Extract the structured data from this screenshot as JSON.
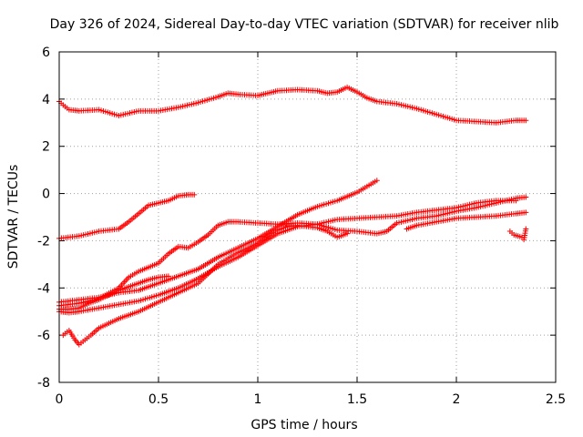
{
  "chart_data": {
    "type": "scatter",
    "title": "Day 326 of 2024, Sidereal Day-to-day VTEC variation (SDTVAR) for receiver nlib",
    "xlabel": "GPS time / hours",
    "ylabel": "SDTVAR / TECUs",
    "xlim": [
      0,
      2.5
    ],
    "ylim": [
      -8,
      6
    ],
    "xticks": [
      {
        "value": 0,
        "label": "0"
      },
      {
        "value": 0.5,
        "label": "0.5"
      },
      {
        "value": 1,
        "label": "1"
      },
      {
        "value": 1.5,
        "label": "1.5"
      },
      {
        "value": 2,
        "label": "2"
      },
      {
        "value": 2.5,
        "label": "2.5"
      }
    ],
    "yticks": [
      {
        "value": -8,
        "label": "-8"
      },
      {
        "value": -6,
        "label": "-6"
      },
      {
        "value": -4,
        "label": "-4"
      },
      {
        "value": -2,
        "label": "-2"
      },
      {
        "value": 0,
        "label": "0"
      },
      {
        "value": 2,
        "label": "2"
      },
      {
        "value": 4,
        "label": "4"
      },
      {
        "value": 6,
        "label": "6"
      }
    ],
    "grid": true,
    "marker": "+",
    "marker_color": "#ff0000",
    "series": [
      {
        "name": "top-arc",
        "points": [
          [
            0,
            3.9
          ],
          [
            0.02,
            3.75
          ],
          [
            0.05,
            3.55
          ],
          [
            0.1,
            3.5
          ],
          [
            0.2,
            3.55
          ],
          [
            0.3,
            3.3
          ],
          [
            0.4,
            3.5
          ],
          [
            0.5,
            3.5
          ],
          [
            0.6,
            3.65
          ],
          [
            0.7,
            3.85
          ],
          [
            0.8,
            4.1
          ],
          [
            0.85,
            4.25
          ],
          [
            0.9,
            4.2
          ],
          [
            1.0,
            4.15
          ],
          [
            1.05,
            4.25
          ],
          [
            1.1,
            4.35
          ],
          [
            1.2,
            4.4
          ],
          [
            1.3,
            4.35
          ],
          [
            1.35,
            4.25
          ],
          [
            1.4,
            4.3
          ],
          [
            1.45,
            4.5
          ],
          [
            1.5,
            4.3
          ],
          [
            1.55,
            4.05
          ],
          [
            1.6,
            3.9
          ],
          [
            1.7,
            3.8
          ],
          [
            1.8,
            3.6
          ],
          [
            1.9,
            3.35
          ],
          [
            2.0,
            3.1
          ],
          [
            2.1,
            3.05
          ],
          [
            2.2,
            3.0
          ],
          [
            2.3,
            3.1
          ],
          [
            2.35,
            3.1
          ]
        ]
      },
      {
        "name": "rising-early",
        "points": [
          [
            0,
            -1.9
          ],
          [
            0.1,
            -1.8
          ],
          [
            0.2,
            -1.6
          ],
          [
            0.3,
            -1.5
          ],
          [
            0.35,
            -1.2
          ],
          [
            0.4,
            -0.85
          ],
          [
            0.45,
            -0.5
          ],
          [
            0.5,
            -0.4
          ],
          [
            0.55,
            -0.3
          ],
          [
            0.6,
            -0.1
          ],
          [
            0.65,
            -0.05
          ],
          [
            0.68,
            -0.05
          ]
        ]
      },
      {
        "name": "steep-rise",
        "points": [
          [
            0,
            -4.6
          ],
          [
            0.1,
            -4.5
          ],
          [
            0.2,
            -4.4
          ],
          [
            0.3,
            -4.2
          ],
          [
            0.4,
            -4.1
          ],
          [
            0.5,
            -3.8
          ],
          [
            0.6,
            -3.5
          ],
          [
            0.7,
            -3.2
          ],
          [
            0.8,
            -2.7
          ],
          [
            0.9,
            -2.3
          ],
          [
            1.0,
            -1.9
          ],
          [
            1.1,
            -1.4
          ],
          [
            1.2,
            -0.9
          ],
          [
            1.3,
            -0.55
          ],
          [
            1.4,
            -0.3
          ],
          [
            1.5,
            0.05
          ],
          [
            1.55,
            0.3
          ],
          [
            1.6,
            0.55
          ]
        ]
      },
      {
        "name": "mid-rise",
        "points": [
          [
            0,
            -4.75
          ],
          [
            0.1,
            -4.65
          ],
          [
            0.2,
            -4.45
          ],
          [
            0.3,
            -4.0
          ],
          [
            0.35,
            -3.55
          ],
          [
            0.4,
            -3.3
          ],
          [
            0.5,
            -2.95
          ],
          [
            0.55,
            -2.55
          ],
          [
            0.6,
            -2.25
          ],
          [
            0.65,
            -2.3
          ],
          [
            0.7,
            -2.05
          ],
          [
            0.75,
            -1.75
          ],
          [
            0.8,
            -1.35
          ],
          [
            0.85,
            -1.2
          ],
          [
            0.9,
            -1.2
          ],
          [
            1.0,
            -1.25
          ],
          [
            1.1,
            -1.3
          ],
          [
            1.2,
            -1.25
          ],
          [
            1.3,
            -1.3
          ],
          [
            1.4,
            -1.55
          ],
          [
            1.5,
            -1.6
          ],
          [
            1.6,
            -1.7
          ],
          [
            1.65,
            -1.6
          ],
          [
            1.7,
            -1.25
          ],
          [
            1.8,
            -1.05
          ],
          [
            1.9,
            -0.95
          ],
          [
            2.0,
            -0.75
          ],
          [
            2.1,
            -0.6
          ],
          [
            2.2,
            -0.4
          ],
          [
            2.3,
            -0.2
          ],
          [
            2.35,
            -0.15
          ]
        ]
      },
      {
        "name": "short-lower",
        "points": [
          [
            0,
            -4.9
          ],
          [
            0.05,
            -4.9
          ],
          [
            0.1,
            -4.85
          ],
          [
            0.15,
            -4.65
          ],
          [
            0.2,
            -4.5
          ],
          [
            0.25,
            -4.3
          ],
          [
            0.3,
            -4.1
          ],
          [
            0.35,
            -3.95
          ],
          [
            0.4,
            -3.8
          ],
          [
            0.45,
            -3.65
          ],
          [
            0.5,
            -3.55
          ],
          [
            0.55,
            -3.5
          ]
        ]
      },
      {
        "name": "lower-rise",
        "points": [
          [
            0,
            -5.0
          ],
          [
            0.05,
            -5.05
          ],
          [
            0.1,
            -5.0
          ],
          [
            0.2,
            -4.85
          ],
          [
            0.3,
            -4.7
          ],
          [
            0.4,
            -4.55
          ],
          [
            0.5,
            -4.3
          ],
          [
            0.6,
            -4.0
          ],
          [
            0.7,
            -3.6
          ],
          [
            0.8,
            -3.1
          ],
          [
            0.9,
            -2.7
          ],
          [
            1.0,
            -2.2
          ],
          [
            1.1,
            -1.7
          ],
          [
            1.2,
            -1.4
          ],
          [
            1.3,
            -1.3
          ],
          [
            1.4,
            -1.1
          ],
          [
            1.5,
            -1.05
          ],
          [
            1.6,
            -1.0
          ],
          [
            1.7,
            -0.95
          ],
          [
            1.8,
            -0.8
          ],
          [
            1.9,
            -0.7
          ],
          [
            2.0,
            -0.6
          ],
          [
            2.1,
            -0.4
          ],
          [
            2.2,
            -0.3
          ],
          [
            2.3,
            -0.3
          ]
        ]
      },
      {
        "name": "bottom-rise",
        "points": [
          [
            0.02,
            -6.0
          ],
          [
            0.05,
            -5.8
          ],
          [
            0.08,
            -6.2
          ],
          [
            0.1,
            -6.4
          ],
          [
            0.13,
            -6.2
          ],
          [
            0.16,
            -6.0
          ],
          [
            0.2,
            -5.7
          ],
          [
            0.25,
            -5.5
          ],
          [
            0.3,
            -5.3
          ],
          [
            0.4,
            -5.0
          ],
          [
            0.5,
            -4.6
          ],
          [
            0.6,
            -4.2
          ],
          [
            0.7,
            -3.8
          ],
          [
            0.75,
            -3.4
          ],
          [
            0.8,
            -3.0
          ],
          [
            0.85,
            -2.75
          ],
          [
            0.9,
            -2.5
          ],
          [
            1.0,
            -2.1
          ],
          [
            1.05,
            -1.8
          ],
          [
            1.1,
            -1.55
          ],
          [
            1.15,
            -1.4
          ],
          [
            1.2,
            -1.35
          ],
          [
            1.3,
            -1.45
          ],
          [
            1.35,
            -1.6
          ],
          [
            1.4,
            -1.85
          ],
          [
            1.45,
            -1.7
          ]
        ]
      },
      {
        "name": "late-segment",
        "points": [
          [
            1.75,
            -1.5
          ],
          [
            1.8,
            -1.35
          ],
          [
            1.9,
            -1.2
          ],
          [
            2.0,
            -1.05
          ],
          [
            2.1,
            -1.0
          ],
          [
            2.2,
            -0.95
          ],
          [
            2.3,
            -0.85
          ],
          [
            2.35,
            -0.8
          ]
        ]
      },
      {
        "name": "late-drop",
        "points": [
          [
            2.27,
            -1.6
          ],
          [
            2.29,
            -1.75
          ],
          [
            2.31,
            -1.8
          ],
          [
            2.33,
            -1.85
          ],
          [
            2.34,
            -1.95
          ],
          [
            2.35,
            -1.5
          ]
        ]
      }
    ]
  }
}
